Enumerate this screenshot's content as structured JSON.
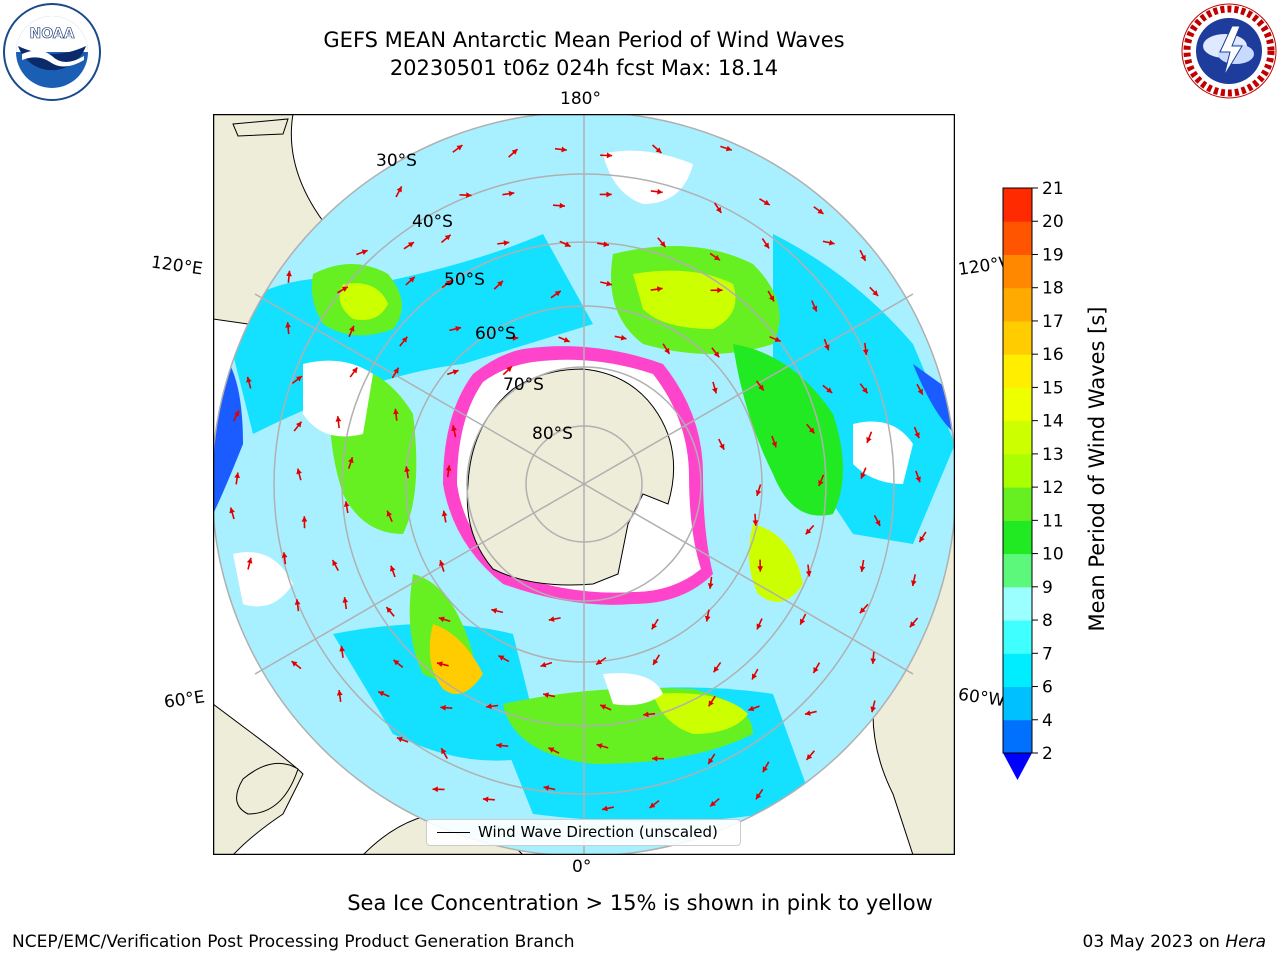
{
  "header": {
    "title_line1": "GEFS MEAN Antarctic Mean Period of Wind Waves",
    "title_line2": "20230501 t06z 024h fcst   Max: 18.14"
  },
  "logos": {
    "noaa": {
      "text": "NOAA",
      "ring_text": "NATIONAL OCEANIC AND ATMOSPHERIC ADMINISTRATION · U.S. DEPARTMENT OF COMMERCE"
    },
    "nws": {
      "ring_text": "NATIONAL WEATHER SERVICE"
    }
  },
  "map": {
    "projection": "south-polar-stereographic",
    "longitude_labels": {
      "top": "180°",
      "upper_left": "120°E",
      "upper_right": "120°W",
      "lower_left": "60°E",
      "lower_right": "60°W",
      "bottom": "0°"
    },
    "latitude_labels": [
      "30°S",
      "40°S",
      "50°S",
      "60°S",
      "70°S",
      "80°S"
    ],
    "colors": {
      "land": "#eeedd9",
      "ocean_no_data": "#ffffff",
      "sea_ice": "#ff44cc",
      "grid": "#b0b0b0",
      "arrow": "#e00000"
    }
  },
  "legend": {
    "label": "Wind Wave Direction (unscaled)"
  },
  "colorbar": {
    "label": "Mean Period of Wind Waves [s]",
    "ticks": [
      "2",
      "4",
      "6",
      "7",
      "8",
      "9",
      "10",
      "11",
      "12",
      "13",
      "14",
      "15",
      "16",
      "17",
      "18",
      "19",
      "20",
      "21"
    ],
    "levels": [
      2,
      4,
      6,
      7,
      8,
      9,
      10,
      11,
      12,
      13,
      14,
      15,
      16,
      17,
      18,
      19,
      20,
      21
    ],
    "colors": [
      "#0070ff",
      "#00c0ff",
      "#00ecff",
      "#40ffff",
      "#9cffff",
      "#5cf87c",
      "#22ea22",
      "#66f022",
      "#aaff00",
      "#ccff00",
      "#eeff00",
      "#ffee00",
      "#ffcc00",
      "#ffaa00",
      "#ff8800",
      "#ff5500",
      "#ff2a00",
      "#ff0000"
    ],
    "under_color": "#0000ff",
    "extend": "min"
  },
  "caption": "Sea Ice Concentration > 15% is shown in pink to yellow",
  "footer": {
    "left": "NCEP/EMC/Verification Post Processing Product Generation Branch",
    "right_date": "03 May 2023 on",
    "right_machine": "Hera"
  }
}
